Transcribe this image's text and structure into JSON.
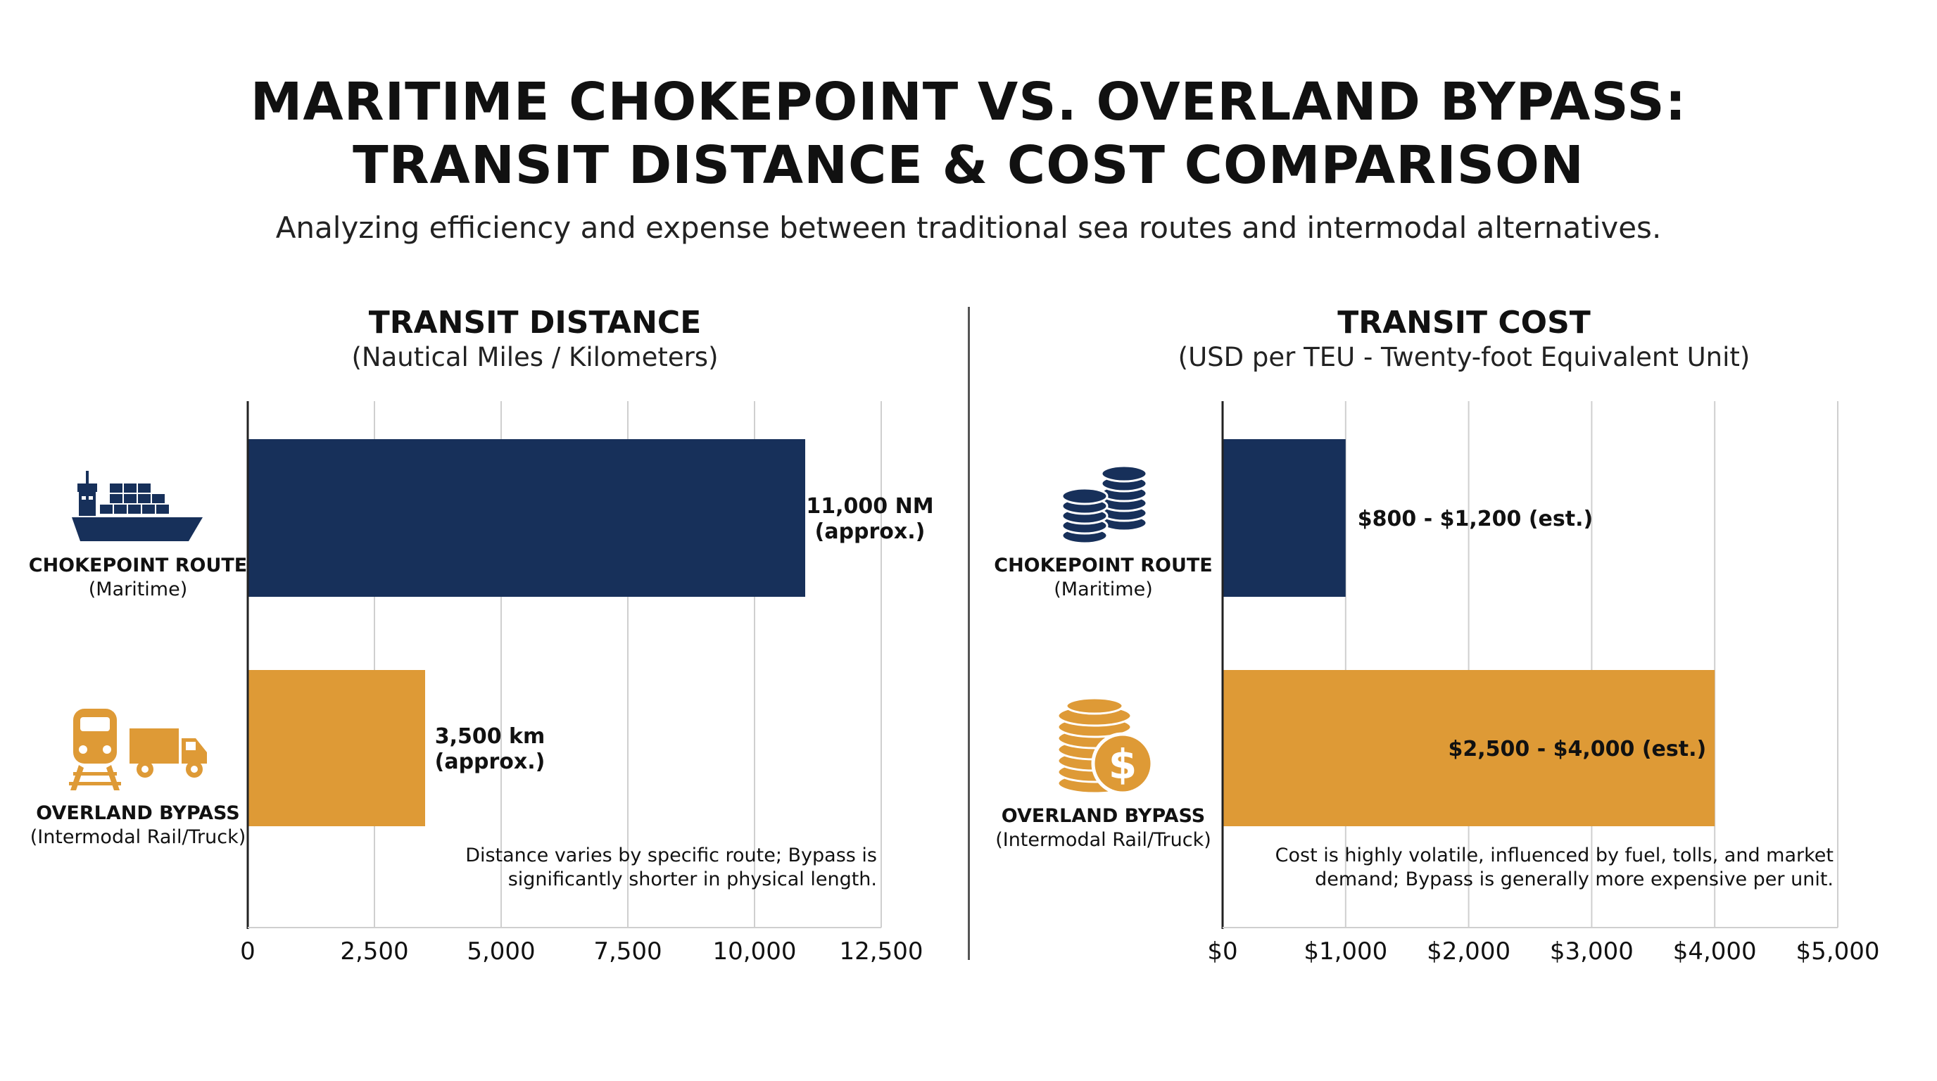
{
  "title_line1": "MARITIME CHOKEPOINT VS. OVERLAND BYPASS:",
  "title_line2": "TRANSIT DISTANCE & COST COMPARISON",
  "subtitle": "Analyzing efficiency and expense between traditional sea routes and intermodal alternatives.",
  "colors": {
    "navy": "#17305a",
    "gold": "#de9a36"
  },
  "icons": {
    "maritime_distance": "cargo-ship-icon",
    "overland_distance": "train-and-truck-icon",
    "maritime_cost": "coin-stacks-icon",
    "overland_cost": "coin-stack-dollar-icon"
  },
  "chart_data": [
    {
      "type": "bar",
      "orientation": "horizontal",
      "title": "TRANSIT DISTANCE",
      "subtitle": "(Nautical Miles / Kilometers)",
      "categories": [
        "CHOKEPOINT ROUTE",
        "OVERLAND BYPASS"
      ],
      "category_sublabels": [
        "(Maritime)",
        "(Intermodal Rail/Truck)"
      ],
      "values": [
        11000,
        3500
      ],
      "data_labels": [
        [
          "11,000 NM",
          "(approx.)"
        ],
        [
          "3,500 km",
          "(approx.)"
        ]
      ],
      "xlim": [
        0,
        12500
      ],
      "xticks": [
        0,
        2500,
        5000,
        7500,
        10000,
        12500
      ],
      "xtick_labels": [
        "0",
        "2,500",
        "5,000",
        "7,500",
        "10,000",
        "12,500"
      ],
      "grid": true,
      "annotation": [
        "Distance varies by specific route; Bypass is",
        "significantly shorter in physical length."
      ]
    },
    {
      "type": "bar",
      "orientation": "horizontal",
      "title": "TRANSIT COST",
      "subtitle": "(USD per TEU - Twenty-foot Equivalent Unit)",
      "categories": [
        "CHOKEPOINT ROUTE",
        "OVERLAND BYPASS"
      ],
      "category_sublabels": [
        "(Maritime)",
        "(Intermodal Rail/Truck)"
      ],
      "values": [
        1000,
        4000
      ],
      "data_labels": [
        [
          "$800 - $1,200 (est.)"
        ],
        [
          "$2,500 - $4,000 (est.)"
        ]
      ],
      "xlim": [
        0,
        5000
      ],
      "xticks": [
        0,
        1000,
        2000,
        3000,
        4000,
        5000
      ],
      "xtick_labels": [
        "$0",
        "$1,000",
        "$2,000",
        "$3,000",
        "$4,000",
        "$5,000"
      ],
      "grid": true,
      "annotation": [
        "Cost is highly volatile, influenced by fuel, tolls, and market",
        "demand; Bypass is generally more expensive per unit."
      ]
    }
  ]
}
